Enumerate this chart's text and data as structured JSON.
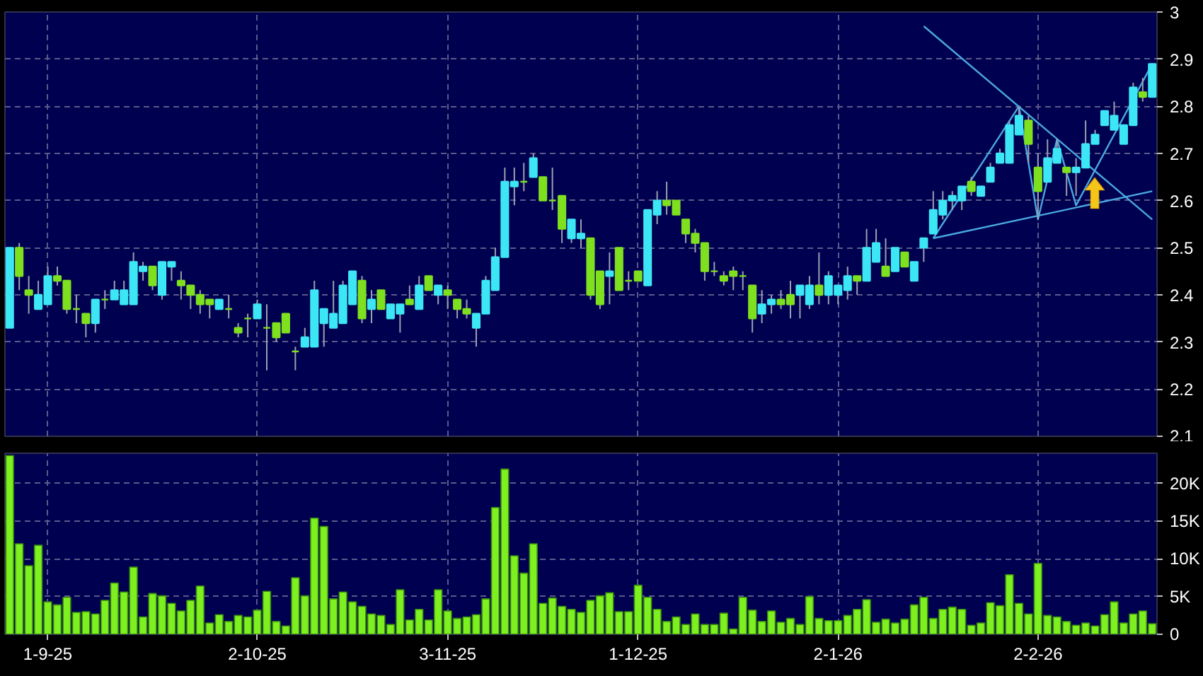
{
  "chart_data": [
    {
      "type": "candlestick",
      "tick_labels": "y",
      "grid": true,
      "colors": [
        "#3ce6f5",
        "#7ee01e",
        "#7ee01e",
        "#3ce6f5",
        "#3ce6f5",
        "#7ee01e",
        "#7ee01e",
        "#7ee01e",
        "#7ee01e",
        "#3ce6f5",
        "#7ee01e",
        "#3ce6f5",
        "#3ce6f5",
        "#3ce6f5",
        "#3ce6f5",
        "#7ee01e",
        "#3ce6f5",
        "#3ce6f5",
        "#7ee01e",
        "#7ee01e",
        "#7ee01e",
        "#7ee01e",
        "#3ce6f5",
        "#7ee01e",
        "#7ee01e",
        "#7ee01e",
        "#3ce6f5",
        "#7ee01e",
        "#7ee01e",
        "#7ee01e",
        "#7ee01e",
        "#3ce6f5",
        "#3ce6f5",
        "#3ce6f5",
        "#3ce6f5",
        "#3ce6f5",
        "#3ce6f5",
        "#7ee01e",
        "#3ce6f5",
        "#7ee01e",
        "#3ce6f5",
        "#3ce6f5",
        "#7ee01e",
        "#3ce6f5",
        "#7ee01e",
        "#3ce6f5",
        "#7ee01e",
        "#7ee01e",
        "#7ee01e",
        "#3ce6f5",
        "#3ce6f5",
        "#3ce6f5",
        "#3ce6f5",
        "#3ce6f5",
        "#7ee01e",
        "#3ce6f5",
        "#7ee01e",
        "#7ee01e",
        "#7ee01e",
        "#3ce6f5",
        "#3ce6f5",
        "#7ee01e",
        "#7ee01e",
        "#3ce6f5",
        "#7ee01e",
        "#7ee01e",
        "#7ee01e",
        "#3ce6f5",
        "#3ce6f5",
        "#7ee01e",
        "#7ee01e",
        "#7ee01e",
        "#7ee01e",
        "#7ee01e",
        "#7ee01e",
        "#7ee01e",
        "#7ee01e",
        "#7ee01e",
        "#7ee01e",
        "#3ce6f5",
        "#3ce6f5",
        "#7ee01e",
        "#7ee01e",
        "#3ce6f5",
        "#3ce6f5",
        "#7ee01e",
        "#3ce6f5",
        "#3ce6f5",
        "#3ce6f5",
        "#7ee01e",
        "#3ce6f5",
        "#3ce6f5",
        "#7ee01e",
        "#3ce6f5",
        "#7ee01e",
        "#3ce6f5",
        "#3ce6f5",
        "#3ce6f5",
        "#3ce6f5",
        "#3ce6f5",
        "#3ce6f5",
        "#7ee01e",
        "#3ce6f5",
        "#3ce6f5",
        "#3ce6f5",
        "#3ce6f5",
        "#3ce6f5",
        "#7ee01e",
        "#7ee01e",
        "#3ce6f5",
        "#3ce6f5",
        "#7ee01e",
        "#3ce6f5",
        "#3ce6f5",
        "#3ce6f5",
        "#3ce6f5",
        "#3ce6f5",
        "#3ce6f5",
        "#3ce6f5",
        "#7ee01e",
        "#3ce6f5"
      ],
      "categories": [
        null,
        null,
        null,
        null,
        null,
        null,
        null,
        null,
        null,
        null,
        null,
        null,
        null,
        null,
        null,
        null,
        null,
        null,
        null,
        null,
        null,
        null,
        null,
        null,
        null,
        null,
        null,
        null,
        null,
        null,
        null,
        null,
        null,
        null,
        null,
        null,
        null,
        null,
        null,
        null,
        null,
        null,
        null,
        null,
        null,
        null,
        null,
        null,
        null,
        null,
        null,
        null,
        null,
        null,
        null,
        null,
        null,
        null,
        null,
        null,
        null,
        null,
        null,
        null,
        null,
        null,
        null,
        null,
        null,
        null,
        null,
        null,
        null,
        null,
        null,
        null,
        null,
        null,
        null,
        null,
        null,
        null,
        null,
        null,
        null,
        null,
        null,
        null,
        null,
        null,
        null,
        null,
        null,
        null,
        null,
        null,
        null,
        null,
        null,
        null,
        null,
        null,
        null,
        null,
        null,
        null,
        null,
        null,
        null,
        null,
        null,
        null,
        null,
        null,
        null,
        null,
        null,
        null,
        null,
        null,
        null
      ],
      "ylim": [
        2.1,
        3
      ],
      "yticks": [
        2.1,
        2.2,
        2.3,
        2.4,
        2.5,
        2.6,
        2.7,
        2.8,
        2.9,
        3
      ],
      "ohlc": [
        [
          2.33,
          2.5,
          2.33,
          2.5
        ],
        [
          2.5,
          2.51,
          2.41,
          2.44
        ],
        [
          2.41,
          2.44,
          2.36,
          2.4
        ],
        [
          2.37,
          2.43,
          2.37,
          2.4
        ],
        [
          2.38,
          2.46,
          2.38,
          2.44
        ],
        [
          2.44,
          2.46,
          2.42,
          2.43
        ],
        [
          2.43,
          2.43,
          2.36,
          2.37
        ],
        [
          2.37,
          2.4,
          2.34,
          2.37
        ],
        [
          2.36,
          2.36,
          2.31,
          2.34
        ],
        [
          2.34,
          2.39,
          2.32,
          2.39
        ],
        [
          2.39,
          2.41,
          2.37,
          2.39
        ],
        [
          2.39,
          2.43,
          2.39,
          2.41
        ],
        [
          2.38,
          2.43,
          2.38,
          2.41
        ],
        [
          2.38,
          2.49,
          2.38,
          2.47
        ],
        [
          2.45,
          2.47,
          2.43,
          2.46
        ],
        [
          2.46,
          2.46,
          2.41,
          2.42
        ],
        [
          2.4,
          2.47,
          2.39,
          2.47
        ],
        [
          2.46,
          2.47,
          2.43,
          2.47
        ],
        [
          2.43,
          2.45,
          2.39,
          2.42
        ],
        [
          2.42,
          2.42,
          2.37,
          2.4
        ],
        [
          2.4,
          2.41,
          2.36,
          2.38
        ],
        [
          2.39,
          2.39,
          2.35,
          2.38
        ],
        [
          2.37,
          2.39,
          2.37,
          2.39
        ],
        [
          2.37,
          2.4,
          2.35,
          2.37
        ],
        [
          2.33,
          2.34,
          2.31,
          2.32
        ],
        [
          2.35,
          2.36,
          2.31,
          2.35
        ],
        [
          2.35,
          2.39,
          2.35,
          2.38
        ],
        [
          2.33,
          2.38,
          2.24,
          2.33
        ],
        [
          2.34,
          2.34,
          2.3,
          2.31
        ],
        [
          2.36,
          2.36,
          2.32,
          2.32
        ],
        [
          2.28,
          2.29,
          2.24,
          2.28
        ],
        [
          2.29,
          2.33,
          2.29,
          2.31
        ],
        [
          2.29,
          2.43,
          2.29,
          2.41
        ],
        [
          2.34,
          2.37,
          2.29,
          2.37
        ],
        [
          2.33,
          2.43,
          2.33,
          2.36
        ],
        [
          2.34,
          2.43,
          2.34,
          2.42
        ],
        [
          2.38,
          2.45,
          2.38,
          2.45
        ],
        [
          2.43,
          2.44,
          2.34,
          2.35
        ],
        [
          2.37,
          2.41,
          2.34,
          2.39
        ],
        [
          2.41,
          2.41,
          2.37,
          2.37
        ],
        [
          2.35,
          2.38,
          2.35,
          2.38
        ],
        [
          2.36,
          2.38,
          2.32,
          2.38
        ],
        [
          2.39,
          2.42,
          2.38,
          2.38
        ],
        [
          2.37,
          2.44,
          2.37,
          2.42
        ],
        [
          2.44,
          2.44,
          2.41,
          2.41
        ],
        [
          2.4,
          2.42,
          2.38,
          2.42
        ],
        [
          2.41,
          2.42,
          2.37,
          2.4
        ],
        [
          2.39,
          2.39,
          2.35,
          2.37
        ],
        [
          2.37,
          2.39,
          2.35,
          2.36
        ],
        [
          2.33,
          2.36,
          2.29,
          2.36
        ],
        [
          2.36,
          2.44,
          2.36,
          2.43
        ],
        [
          2.41,
          2.5,
          2.41,
          2.48
        ],
        [
          2.48,
          2.67,
          2.48,
          2.64
        ],
        [
          2.63,
          2.67,
          2.59,
          2.64
        ],
        [
          2.64,
          2.68,
          2.62,
          2.64
        ],
        [
          2.65,
          2.7,
          2.65,
          2.69
        ],
        [
          2.65,
          2.65,
          2.6,
          2.6
        ],
        [
          2.6,
          2.67,
          2.58,
          2.6
        ],
        [
          2.61,
          2.61,
          2.51,
          2.54
        ],
        [
          2.52,
          2.56,
          2.51,
          2.56
        ],
        [
          2.52,
          2.56,
          2.5,
          2.53
        ],
        [
          2.52,
          2.52,
          2.39,
          2.4
        ],
        [
          2.45,
          2.45,
          2.37,
          2.38
        ],
        [
          2.44,
          2.49,
          2.38,
          2.45
        ],
        [
          2.5,
          2.5,
          2.41,
          2.41
        ],
        [
          2.43,
          2.45,
          2.41,
          2.43
        ],
        [
          2.45,
          2.45,
          2.43,
          2.43
        ],
        [
          2.42,
          2.58,
          2.42,
          2.58
        ],
        [
          2.57,
          2.62,
          2.55,
          2.6
        ],
        [
          2.6,
          2.64,
          2.57,
          2.59
        ],
        [
          2.6,
          2.6,
          2.57,
          2.57
        ],
        [
          2.56,
          2.56,
          2.51,
          2.53
        ],
        [
          2.53,
          2.54,
          2.49,
          2.51
        ],
        [
          2.51,
          2.51,
          2.43,
          2.45
        ],
        [
          2.45,
          2.47,
          2.44,
          2.45
        ],
        [
          2.44,
          2.45,
          2.42,
          2.43
        ],
        [
          2.45,
          2.46,
          2.41,
          2.44
        ],
        [
          2.44,
          2.45,
          2.41,
          2.44
        ],
        [
          2.42,
          2.42,
          2.32,
          2.35
        ],
        [
          2.36,
          2.41,
          2.34,
          2.38
        ],
        [
          2.38,
          2.4,
          2.36,
          2.39
        ],
        [
          2.39,
          2.41,
          2.37,
          2.38
        ],
        [
          2.4,
          2.43,
          2.35,
          2.38
        ],
        [
          2.4,
          2.42,
          2.35,
          2.42
        ],
        [
          2.38,
          2.44,
          2.37,
          2.42
        ],
        [
          2.42,
          2.49,
          2.38,
          2.4
        ],
        [
          2.4,
          2.45,
          2.38,
          2.44
        ],
        [
          2.4,
          2.42,
          2.38,
          2.42
        ],
        [
          2.41,
          2.46,
          2.39,
          2.44
        ],
        [
          2.44,
          2.44,
          2.4,
          2.43
        ],
        [
          2.43,
          2.54,
          2.43,
          2.5
        ],
        [
          2.47,
          2.54,
          2.47,
          2.51
        ],
        [
          2.46,
          2.52,
          2.44,
          2.44
        ],
        [
          2.45,
          2.5,
          2.45,
          2.5
        ],
        [
          2.49,
          2.49,
          2.46,
          2.46
        ],
        [
          2.43,
          2.47,
          2.43,
          2.47
        ],
        [
          2.5,
          2.52,
          2.47,
          2.52
        ],
        [
          2.53,
          2.62,
          2.53,
          2.58
        ],
        [
          2.57,
          2.62,
          2.56,
          2.6
        ],
        [
          2.6,
          2.62,
          2.58,
          2.61
        ],
        [
          2.6,
          2.63,
          2.58,
          2.63
        ],
        [
          2.64,
          2.65,
          2.61,
          2.62
        ],
        [
          2.61,
          2.63,
          2.61,
          2.63
        ],
        [
          2.64,
          2.68,
          2.64,
          2.67
        ],
        [
          2.68,
          2.71,
          2.68,
          2.7
        ],
        [
          2.68,
          2.77,
          2.68,
          2.76
        ],
        [
          2.74,
          2.8,
          2.74,
          2.78
        ],
        [
          2.77,
          2.78,
          2.68,
          2.72
        ],
        [
          2.67,
          2.7,
          2.56,
          2.62
        ],
        [
          2.64,
          2.73,
          2.64,
          2.69
        ],
        [
          2.68,
          2.73,
          2.68,
          2.71
        ],
        [
          2.67,
          2.67,
          2.61,
          2.66
        ],
        [
          2.66,
          2.69,
          2.61,
          2.67
        ],
        [
          2.67,
          2.77,
          2.67,
          2.72
        ],
        [
          2.72,
          2.75,
          2.72,
          2.74
        ],
        [
          2.76,
          2.79,
          2.76,
          2.79
        ],
        [
          2.75,
          2.81,
          2.75,
          2.78
        ],
        [
          2.72,
          2.76,
          2.72,
          2.76
        ],
        [
          2.76,
          2.85,
          2.76,
          2.84
        ],
        [
          2.83,
          2.86,
          2.81,
          2.82
        ],
        [
          2.82,
          2.89,
          2.82,
          2.89
        ]
      ],
      "series": [
        {
          "type": "line",
          "color": "#4aa8e0",
          "values": [
            null,
            null,
            null,
            null,
            null,
            null,
            null,
            null,
            null,
            null,
            null,
            null,
            null,
            null,
            null,
            null,
            null,
            null,
            null,
            null,
            null,
            null,
            null,
            null,
            null,
            null,
            null,
            null,
            null,
            null,
            null,
            null,
            null,
            null,
            null,
            null,
            null,
            null,
            null,
            null,
            null,
            null,
            null,
            null,
            null,
            null,
            null,
            null,
            null,
            null,
            null,
            null,
            null,
            null,
            null,
            null,
            null,
            null,
            null,
            null,
            null,
            null,
            null,
            null,
            null,
            null,
            null,
            null,
            null,
            null,
            null,
            null,
            null,
            null,
            null,
            null,
            null,
            null,
            null,
            null,
            null,
            null,
            null,
            null,
            null,
            null,
            null,
            null,
            null,
            null,
            null,
            null,
            null,
            null,
            null,
            null,
            2.97,
            null,
            null,
            null,
            null,
            null,
            null,
            null,
            null,
            null,
            null,
            null,
            null,
            null,
            null,
            null,
            null,
            null,
            null,
            null,
            null,
            null,
            null,
            null,
            2.56
          ]
        },
        {
          "type": "line",
          "color": "#4aa8e0",
          "values": [
            null,
            null,
            null,
            null,
            null,
            null,
            null,
            null,
            null,
            null,
            null,
            null,
            null,
            null,
            null,
            null,
            null,
            null,
            null,
            null,
            null,
            null,
            null,
            null,
            null,
            null,
            null,
            null,
            null,
            null,
            null,
            null,
            null,
            null,
            null,
            null,
            null,
            null,
            null,
            null,
            null,
            null,
            null,
            null,
            null,
            null,
            null,
            null,
            null,
            null,
            null,
            null,
            null,
            null,
            null,
            null,
            null,
            null,
            null,
            null,
            null,
            null,
            null,
            null,
            null,
            null,
            null,
            null,
            null,
            null,
            null,
            null,
            null,
            null,
            null,
            null,
            null,
            null,
            null,
            null,
            null,
            null,
            null,
            null,
            null,
            null,
            null,
            null,
            null,
            null,
            null,
            null,
            null,
            null,
            null,
            null,
            null,
            2.52,
            null,
            null,
            null,
            null,
            null,
            null,
            null,
            null,
            null,
            null,
            null,
            null,
            null,
            null,
            null,
            null,
            null,
            null,
            null,
            null,
            null,
            null,
            2.62
          ]
        },
        {
          "type": "line",
          "color": "#4aa8e0",
          "values": [
            null,
            null,
            null,
            null,
            null,
            null,
            null,
            null,
            null,
            null,
            null,
            null,
            null,
            null,
            null,
            null,
            null,
            null,
            null,
            null,
            null,
            null,
            null,
            null,
            null,
            null,
            null,
            null,
            null,
            null,
            null,
            null,
            null,
            null,
            null,
            null,
            null,
            null,
            null,
            null,
            null,
            null,
            null,
            null,
            null,
            null,
            null,
            null,
            null,
            null,
            null,
            null,
            null,
            null,
            null,
            null,
            null,
            null,
            null,
            null,
            null,
            null,
            null,
            null,
            null,
            null,
            null,
            null,
            null,
            null,
            null,
            null,
            null,
            null,
            null,
            null,
            null,
            null,
            null,
            null,
            null,
            null,
            null,
            null,
            null,
            null,
            null,
            null,
            null,
            null,
            null,
            null,
            null,
            null,
            null,
            null,
            null,
            2.52,
            null,
            null,
            null,
            null,
            null,
            null,
            null,
            null,
            2.8,
            null,
            2.56,
            null,
            2.73,
            null,
            2.59,
            null,
            null,
            null,
            null,
            null,
            null,
            null,
            2.89
          ]
        }
      ]
    },
    {
      "type": "bar",
      "grid": true,
      "color": "#7ef020",
      "categories": [
        null,
        null,
        null,
        null,
        "1-9-25",
        null,
        null,
        null,
        null,
        null,
        null,
        null,
        null,
        null,
        null,
        null,
        null,
        null,
        null,
        null,
        null,
        null,
        null,
        null,
        null,
        null,
        "2-10-25",
        null,
        null,
        null,
        null,
        null,
        null,
        null,
        null,
        null,
        null,
        null,
        null,
        null,
        null,
        null,
        null,
        null,
        null,
        null,
        "3-11-25",
        null,
        null,
        null,
        null,
        null,
        null,
        null,
        null,
        null,
        null,
        null,
        null,
        null,
        null,
        null,
        null,
        null,
        null,
        null,
        "1-12-25",
        null,
        null,
        null,
        null,
        null,
        null,
        null,
        null,
        null,
        null,
        null,
        null,
        null,
        null,
        null,
        null,
        null,
        null,
        null,
        null,
        "2-1-26",
        null,
        null,
        null,
        null,
        null,
        null,
        null,
        null,
        null,
        null,
        null,
        null,
        null,
        null,
        null,
        null,
        null,
        null,
        null,
        null,
        "2-2-26",
        null,
        null,
        null,
        null,
        null,
        null,
        null,
        null,
        null,
        null,
        null,
        null
      ],
      "ylim": [
        0,
        24000
      ],
      "yticks": [
        0,
        {
          "value": 5000,
          "label": "5K"
        },
        {
          "value": 10000,
          "label": "10K"
        },
        {
          "value": 15000,
          "label": "15K"
        },
        {
          "value": 20000,
          "label": "20K"
        }
      ],
      "values": [
        23700,
        12000,
        9100,
        11800,
        4300,
        3900,
        4900,
        2900,
        3000,
        2700,
        4500,
        6800,
        5600,
        8900,
        2300,
        5400,
        5100,
        4100,
        3100,
        4500,
        6400,
        1500,
        2600,
        1700,
        2500,
        2300,
        3200,
        5700,
        1700,
        1100,
        7500,
        5100,
        15400,
        14300,
        4700,
        5600,
        4300,
        3700,
        2700,
        2500,
        1300,
        5900,
        1900,
        3300,
        1900,
        5900,
        3100,
        2100,
        2300,
        2600,
        4700,
        16800,
        21900,
        10400,
        8100,
        12000,
        4100,
        4800,
        3700,
        3300,
        2900,
        4500,
        5100,
        5500,
        3000,
        3000,
        6500,
        4900,
        3300,
        1700,
        2300,
        1300,
        2700,
        1300,
        1300,
        2800,
        700,
        4900,
        3200,
        1700,
        3100,
        1600,
        2100,
        1300,
        5000,
        2100,
        1800,
        1800,
        2500,
        3300,
        4600,
        1600,
        2000,
        1500,
        2000,
        3900,
        4900,
        2100,
        3300,
        3600,
        3300,
        1200,
        1500,
        4200,
        3800,
        7900,
        4100,
        2700,
        9400,
        2500,
        2300,
        1700,
        1200,
        1500,
        1100,
        2600,
        4300,
        1500,
        2700,
        3100,
        1400
      ]
    }
  ]
}
